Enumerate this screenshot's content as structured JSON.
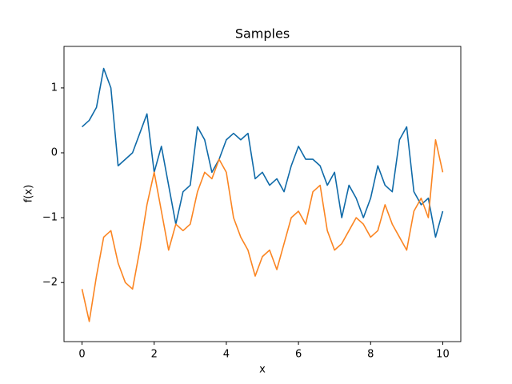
{
  "chart_data": {
    "type": "line",
    "title": "Samples",
    "xlabel": "x",
    "ylabel": "f(x)",
    "x": [
      0,
      0.2,
      0.4,
      0.6,
      0.8,
      1,
      1.2,
      1.4,
      1.6,
      1.8,
      2,
      2.2,
      2.4,
      2.6,
      2.8,
      3,
      3.2,
      3.4,
      3.6,
      3.8,
      4,
      4.2,
      4.4,
      4.6,
      4.8,
      5,
      5.2,
      5.4,
      5.6,
      5.8,
      6,
      6.2,
      6.4,
      6.6,
      6.8,
      7,
      7.2,
      7.4,
      7.6,
      7.8,
      8,
      8.2,
      8.4,
      8.6,
      8.8,
      9,
      9.2,
      9.4,
      9.6,
      9.8,
      10
    ],
    "series": [
      {
        "color": "#0f6aa8",
        "values": [
          0.4,
          0.5,
          0.7,
          1.3,
          1.0,
          -0.2,
          -0.1,
          0.0,
          0.3,
          0.6,
          -0.3,
          0.1,
          -0.5,
          -1.1,
          -0.6,
          -0.5,
          0.4,
          0.2,
          -0.3,
          -0.1,
          0.2,
          0.3,
          0.2,
          0.3,
          -0.4,
          -0.3,
          -0.5,
          -0.4,
          -0.6,
          -0.2,
          0.1,
          -0.1,
          -0.1,
          -0.2,
          -0.5,
          -0.3,
          -1.0,
          -0.5,
          -0.7,
          -1.0,
          -0.7,
          -0.2,
          -0.5,
          -0.6,
          0.2,
          0.4,
          -0.6,
          -0.8,
          -0.7,
          -1.3,
          -0.9
        ]
      },
      {
        "color": "#fb8522",
        "values": [
          -2.1,
          -2.6,
          -1.9,
          -1.3,
          -1.2,
          -1.7,
          -2.0,
          -2.1,
          -1.5,
          -0.8,
          -0.3,
          -0.9,
          -1.5,
          -1.1,
          -1.2,
          -1.1,
          -0.6,
          -0.3,
          -0.4,
          -0.1,
          -0.3,
          -1.0,
          -1.3,
          -1.5,
          -1.9,
          -1.6,
          -1.5,
          -1.8,
          -1.4,
          -1.0,
          -0.9,
          -1.1,
          -0.6,
          -0.5,
          -1.2,
          -1.5,
          -1.4,
          -1.2,
          -1.0,
          -1.1,
          -1.3,
          -1.2,
          -0.8,
          -1.1,
          -1.3,
          -1.5,
          -0.9,
          -0.7,
          -1.0,
          0.2,
          -0.3
        ]
      }
    ],
    "xlim": [
      -0.5,
      10.5
    ],
    "ylim": [
      -2.91,
      1.64
    ],
    "xticks": [
      0,
      2,
      4,
      6,
      8,
      10
    ],
    "yticks": [
      {
        "value": -2,
        "label": "−2"
      },
      {
        "value": -1,
        "label": "−1"
      },
      0,
      1
    ]
  }
}
